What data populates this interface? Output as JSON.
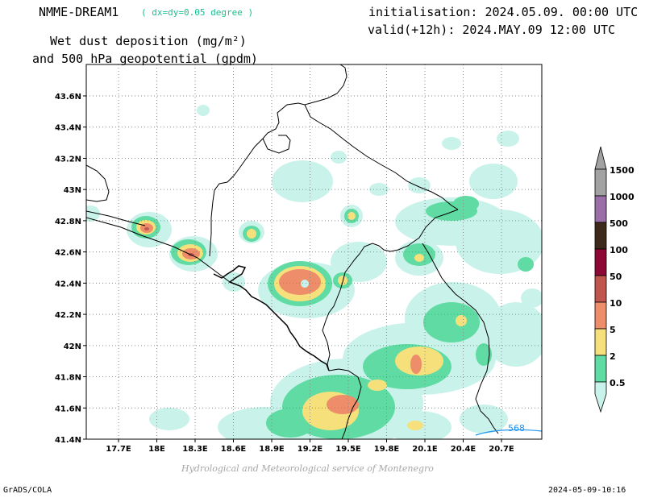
{
  "header": {
    "model_name": "NMME-DREAM1",
    "resolution": "( dx=dy=0.05 degree )",
    "title_line1": "Wet dust deposition (mg/m²)",
    "title_line2": "and 500 hPa geopotential (gpdm)",
    "initialisation": "initialisation: 2024.05.09. 00:00 UTC",
    "valid": "valid(+12h): 2024.MAY.09 12:00 UTC"
  },
  "map": {
    "lat_labels": [
      "43.6N",
      "43.4N",
      "43.2N",
      "43N",
      "42.8N",
      "42.6N",
      "42.4N",
      "42.2N",
      "42N",
      "41.8N",
      "41.6N",
      "41.4N"
    ],
    "lon_labels": [
      "17.7E",
      "18E",
      "18.3E",
      "18.6E",
      "18.9E",
      "19.2E",
      "19.5E",
      "19.8E",
      "20.1E",
      "20.4E",
      "20.7E"
    ],
    "contour_label": "568",
    "contour_color": "#2196f3"
  },
  "colorbar": {
    "levels": [
      {
        "label": "1500",
        "color": "#a2a2a2"
      },
      {
        "label": "1000",
        "color": "#9a6fa8"
      },
      {
        "label": "500",
        "color": "#3e2a1c"
      },
      {
        "label": "100",
        "color": "#8e0836"
      },
      {
        "label": "50",
        "color": "#c0564e"
      },
      {
        "label": "10",
        "color": "#ee8d6a"
      },
      {
        "label": "5",
        "color": "#f5e07b"
      },
      {
        "label": "2",
        "color": "#5fdba3"
      },
      {
        "label": "0.5",
        "color": "#c9f3ea"
      }
    ]
  },
  "footer": {
    "credit": "Hydrological and Meteorological service of Montenegro",
    "software": "GrADS/COLA",
    "timestamp": "2024-05-09-10:16"
  }
}
